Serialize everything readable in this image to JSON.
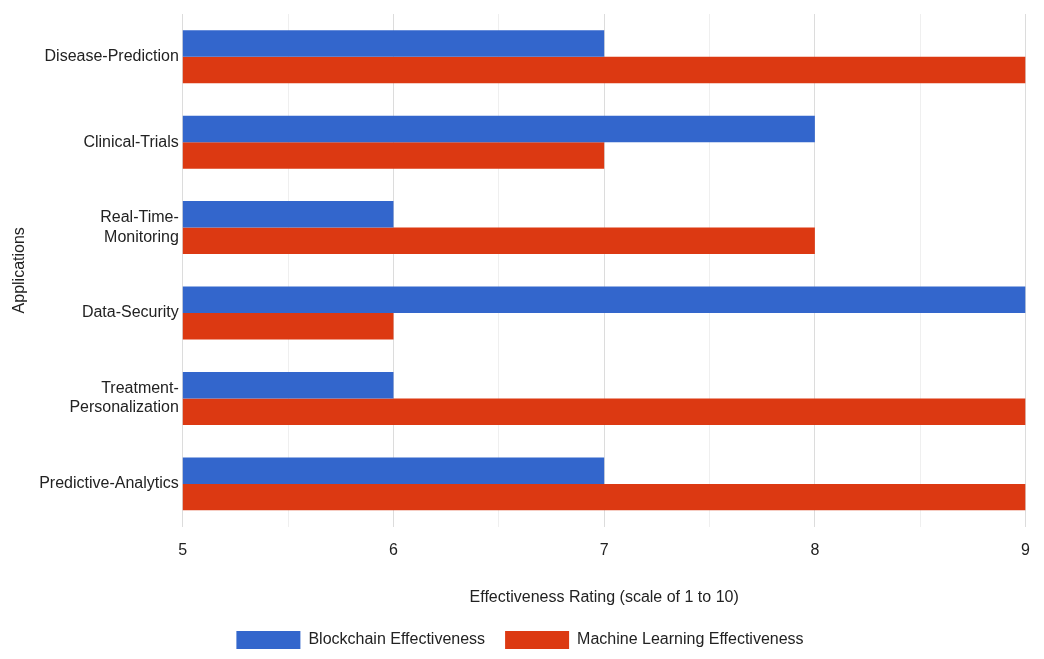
{
  "chart_data": {
    "type": "bar",
    "orientation": "horizontal",
    "xlabel": "Effectiveness Rating (scale of 1 to 10)",
    "ylabel": "Applications",
    "categories": [
      "Disease-Prediction",
      "Clinical-Trials",
      "Real-Time-\nMonitoring",
      "Data-Security",
      "Treatment-\nPersonalization",
      "Predictive-Analytics"
    ],
    "series": [
      {
        "name": "Blockchain Effectiveness",
        "color": "#3366cc",
        "values": [
          7,
          8,
          6,
          9,
          6,
          7
        ]
      },
      {
        "name": "Machine Learning Effectiveness",
        "color": "#dc3912",
        "values": [
          9,
          7,
          8,
          6,
          9,
          9
        ]
      }
    ],
    "xlim": [
      5,
      9
    ],
    "xticks": [
      5,
      {
        "value": 5.5,
        "label": null
      },
      6,
      {
        "value": 6.5,
        "label": null
      },
      7,
      {
        "value": 7.5,
        "label": null
      },
      8,
      {
        "value": 8.5,
        "label": null
      },
      9
    ],
    "grid": "x",
    "legend": "bottom"
  }
}
